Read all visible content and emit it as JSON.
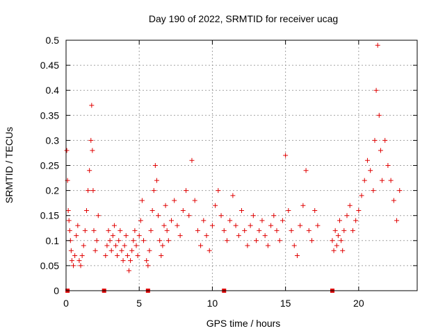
{
  "chart_data": {
    "type": "scatter",
    "title": "Day 190 of 2022, SRMTID for receiver ucag",
    "xlabel": "GPS time / hours",
    "ylabel": "SRMTID / TECUs",
    "xlim": [
      0,
      24
    ],
    "ylim": [
      0,
      0.5
    ],
    "xticks": [
      0,
      5,
      10,
      15,
      20
    ],
    "yticks": [
      0,
      0.05,
      0.1,
      0.15,
      0.2,
      0.25,
      0.3,
      0.35,
      0.4,
      0.45,
      0.5
    ],
    "ytick_labels": [
      "0",
      "0.05",
      "0.1",
      "0.15",
      "0.2",
      "0.25",
      "0.3",
      "0.35",
      "0.4",
      "0.45",
      "0.5"
    ],
    "grid": true,
    "marker": "plus",
    "color": "#e00000",
    "series": [
      {
        "name": "SRMTID",
        "x": [
          0.05,
          0.1,
          0.15,
          0.2,
          0.25,
          0.3,
          0.35,
          0.4,
          0.5,
          0.6,
          0.7,
          0.8,
          0.9,
          1.0,
          1.1,
          1.2,
          1.3,
          1.4,
          1.5,
          1.6,
          1.7,
          1.75,
          1.8,
          1.85,
          1.9,
          2.0,
          2.1,
          2.2,
          2.7,
          2.8,
          2.9,
          3.0,
          3.1,
          3.2,
          3.3,
          3.4,
          3.5,
          3.6,
          3.7,
          3.8,
          3.9,
          4.0,
          4.1,
          4.2,
          4.3,
          4.4,
          4.5,
          4.6,
          4.7,
          4.8,
          4.9,
          5.0,
          5.1,
          5.2,
          5.3,
          5.5,
          5.6,
          5.7,
          5.8,
          5.9,
          6.0,
          6.1,
          6.2,
          6.3,
          6.4,
          6.5,
          6.6,
          6.7,
          6.8,
          6.9,
          7.0,
          7.2,
          7.4,
          7.6,
          7.8,
          8.0,
          8.2,
          8.4,
          8.6,
          8.8,
          9.0,
          9.2,
          9.4,
          9.6,
          9.8,
          10.0,
          10.2,
          10.4,
          10.6,
          10.8,
          11.0,
          11.2,
          11.4,
          11.6,
          11.8,
          12.0,
          12.2,
          12.4,
          12.6,
          12.8,
          13.0,
          13.2,
          13.4,
          13.6,
          13.8,
          14.0,
          14.2,
          14.4,
          14.6,
          14.8,
          15.0,
          15.2,
          15.4,
          15.6,
          15.8,
          16.0,
          16.2,
          16.4,
          16.6,
          16.8,
          17.0,
          17.2,
          18.2,
          18.3,
          18.4,
          18.5,
          18.6,
          18.7,
          18.8,
          18.9,
          19.0,
          19.2,
          19.4,
          19.6,
          19.8,
          20.0,
          20.2,
          20.4,
          20.6,
          20.8,
          21.0,
          21.1,
          21.2,
          21.3,
          21.4,
          21.5,
          21.6,
          21.8,
          22.0,
          22.2,
          22.4,
          22.6,
          22.8
        ],
        "y": [
          0.28,
          0.22,
          0.16,
          0.14,
          0.12,
          0.1,
          0.08,
          0.06,
          0.05,
          0.07,
          0.11,
          0.13,
          0.06,
          0.05,
          0.07,
          0.09,
          0.12,
          0.16,
          0.2,
          0.24,
          0.3,
          0.37,
          0.28,
          0.2,
          0.12,
          0.08,
          0.1,
          0.15,
          0.07,
          0.09,
          0.12,
          0.1,
          0.08,
          0.11,
          0.13,
          0.09,
          0.07,
          0.1,
          0.12,
          0.08,
          0.06,
          0.09,
          0.11,
          0.07,
          0.04,
          0.06,
          0.08,
          0.1,
          0.12,
          0.09,
          0.07,
          0.11,
          0.14,
          0.18,
          0.1,
          0.06,
          0.05,
          0.08,
          0.12,
          0.16,
          0.2,
          0.25,
          0.22,
          0.15,
          0.1,
          0.07,
          0.09,
          0.13,
          0.17,
          0.12,
          0.1,
          0.14,
          0.18,
          0.13,
          0.11,
          0.16,
          0.2,
          0.15,
          0.26,
          0.18,
          0.12,
          0.09,
          0.14,
          0.11,
          0.08,
          0.13,
          0.17,
          0.2,
          0.15,
          0.12,
          0.1,
          0.14,
          0.19,
          0.13,
          0.11,
          0.16,
          0.12,
          0.09,
          0.13,
          0.15,
          0.1,
          0.12,
          0.14,
          0.11,
          0.09,
          0.13,
          0.15,
          0.12,
          0.1,
          0.14,
          0.27,
          0.16,
          0.12,
          0.09,
          0.07,
          0.13,
          0.17,
          0.24,
          0.12,
          0.1,
          0.16,
          0.13,
          0.1,
          0.08,
          0.12,
          0.09,
          0.11,
          0.14,
          0.1,
          0.08,
          0.12,
          0.15,
          0.17,
          0.12,
          0.14,
          0.16,
          0.19,
          0.22,
          0.26,
          0.24,
          0.2,
          0.3,
          0.4,
          0.49,
          0.35,
          0.28,
          0.22,
          0.3,
          0.25,
          0.22,
          0.18,
          0.14,
          0.2
        ],
        "zero_markers_x": [
          0.1,
          2.6,
          5.6,
          10.8,
          18.2
        ]
      }
    ]
  }
}
